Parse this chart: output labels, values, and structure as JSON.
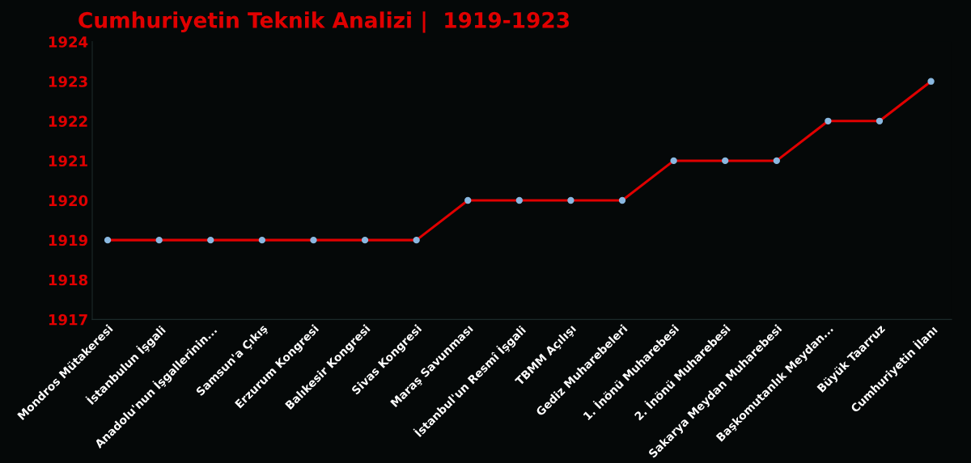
{
  "chart_data": {
    "type": "line",
    "title": "Cumhuriyetin Teknik Analizi |  1919-1923",
    "categories": [
      "Mondros Mütakeresi",
      "İstanbulun İşgali",
      "Anadolu'nun İşgallerinin...",
      "Samsun'a Çıkış",
      "Erzurum Kongresi",
      "Balıkesir Kongresi",
      "Sivas Kongresi",
      "Maraş Savunması",
      "İstanbul'un Resmî İşgali",
      "TBMM Açılışı",
      "Gediz Muharebeleri",
      "1. İnönü Muharebesi",
      "2. İnönü Muharebesi",
      "Sakarya Meydan Muharebesi",
      "Başkomutanlık Meydan...",
      "Büyük Taarruz",
      "Cumhuriyetin İlanı"
    ],
    "series": [
      {
        "color": "#e00000",
        "values": [
          1919,
          1919,
          1919,
          1919,
          1919,
          1919,
          1919,
          1920,
          1920,
          1920,
          1920,
          1921,
          1921,
          1921,
          1922,
          1922,
          1923
        ]
      }
    ],
    "ylim": [
      1917,
      1924
    ],
    "yticks": [
      1917,
      1918,
      1919,
      1920,
      1921,
      1922,
      1923,
      1924
    ],
    "marker": "circle",
    "line_style": "solid",
    "grid": false,
    "legend": false
  }
}
